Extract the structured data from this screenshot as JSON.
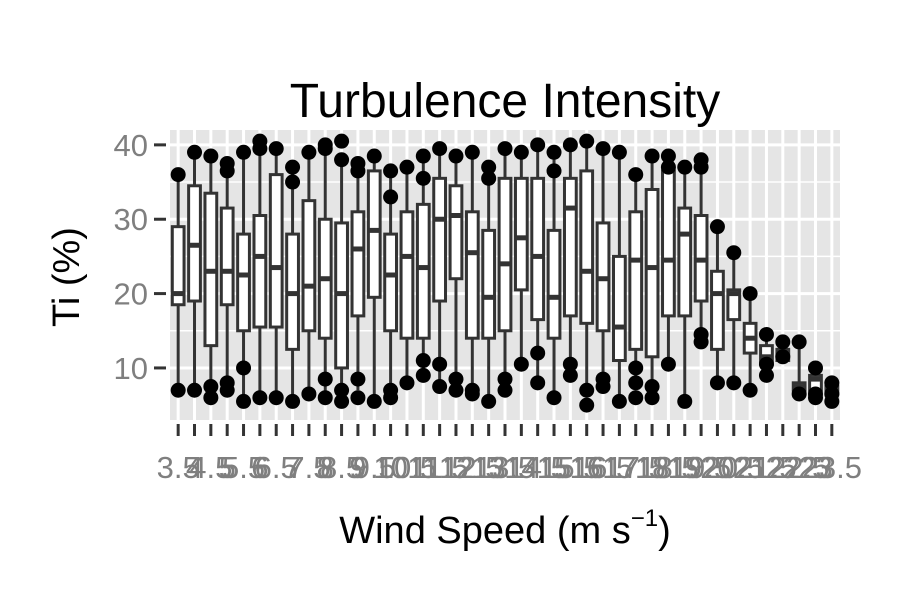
{
  "chart_data": {
    "type": "boxplot",
    "title": "Turbulence Intensity",
    "xlabel": "Wind Speed (m s",
    "xlabel_superscript": "−1",
    "xlabel_suffix": ")",
    "ylabel": "Ti (%)",
    "ylim": [
      3,
      42
    ],
    "yticks": [
      10,
      20,
      30,
      40
    ],
    "ytick_labels": [
      "10",
      "20",
      "30",
      "40"
    ],
    "grid": true,
    "legend": "none",
    "categories": [
      "3.5",
      "4",
      "4.5",
      "5",
      "5.5",
      "6",
      "6.5",
      "7",
      "7.5",
      "8",
      "8.5",
      "9",
      "9.5",
      "10",
      "10.5",
      "11",
      "11.5",
      "12",
      "12.5",
      "13",
      "13.5",
      "14",
      "14.5",
      "15",
      "15.5",
      "16",
      "16.5",
      "17",
      "17.5",
      "18",
      "18.5",
      "19",
      "19.5",
      "20",
      "20.5",
      "21",
      "21.5",
      "22",
      "22.5",
      "23",
      "23.5"
    ],
    "boxes": [
      {
        "whislo": 7,
        "q1": 18.5,
        "med": 20,
        "q3": 29,
        "whishi": 36,
        "fliers": [
          7,
          36
        ]
      },
      {
        "whislo": 7,
        "q1": 19,
        "med": 26.5,
        "q3": 34.5,
        "whishi": 39,
        "fliers": [
          7,
          39
        ]
      },
      {
        "whislo": 6,
        "q1": 13,
        "med": 23,
        "q3": 33.5,
        "whishi": 38,
        "fliers": [
          6,
          7.5,
          38.5
        ]
      },
      {
        "whislo": 7,
        "q1": 18.5,
        "med": 23,
        "q3": 31.5,
        "whishi": 37,
        "fliers": [
          7,
          8,
          36.5,
          37.5
        ]
      },
      {
        "whislo": 6,
        "q1": 15,
        "med": 22.5,
        "q3": 28,
        "whishi": 39,
        "fliers": [
          5.5,
          10,
          39
        ]
      },
      {
        "whislo": 6,
        "q1": 15.5,
        "med": 25,
        "q3": 30.5,
        "whishi": 39.5,
        "fliers": [
          6,
          39.5,
          40.5
        ]
      },
      {
        "whislo": 6,
        "q1": 15.5,
        "med": 23.5,
        "q3": 36,
        "whishi": 39.5,
        "fliers": [
          6,
          39.5
        ]
      },
      {
        "whislo": 5.5,
        "q1": 12.5,
        "med": 20,
        "q3": 28,
        "whishi": 37,
        "fliers": [
          5.5,
          35,
          37
        ]
      },
      {
        "whislo": 6.5,
        "q1": 15,
        "med": 21,
        "q3": 32.5,
        "whishi": 39,
        "fliers": [
          6.5,
          39
        ]
      },
      {
        "whislo": 6.5,
        "q1": 14,
        "med": 22,
        "q3": 30,
        "whishi": 40,
        "fliers": [
          6,
          8.5,
          39.5,
          40
        ]
      },
      {
        "whislo": 7,
        "q1": 10,
        "med": 20,
        "q3": 29.5,
        "whishi": 38.5,
        "fliers": [
          5.5,
          7,
          38,
          40.5
        ]
      },
      {
        "whislo": 7,
        "q1": 17,
        "med": 26,
        "q3": 31,
        "whishi": 37,
        "fliers": [
          6,
          8.5,
          36.5,
          37.5
        ]
      },
      {
        "whislo": 5.5,
        "q1": 19.5,
        "med": 28.5,
        "q3": 36.5,
        "whishi": 38.5,
        "fliers": [
          5.5,
          38.5
        ]
      },
      {
        "whislo": 7,
        "q1": 15,
        "med": 22.5,
        "q3": 28,
        "whishi": 36.5,
        "fliers": [
          6,
          7,
          33,
          36.5
        ]
      },
      {
        "whislo": 8,
        "q1": 14,
        "med": 25,
        "q3": 31,
        "whishi": 37,
        "fliers": [
          8,
          37
        ]
      },
      {
        "whislo": 9,
        "q1": 14,
        "med": 23.5,
        "q3": 32,
        "whishi": 38.5,
        "fliers": [
          9,
          11,
          35.5,
          38.5
        ]
      },
      {
        "whislo": 7.5,
        "q1": 19,
        "med": 30,
        "q3": 35.5,
        "whishi": 39.5,
        "fliers": [
          7.5,
          10.5,
          39.5
        ]
      },
      {
        "whislo": 8,
        "q1": 22,
        "med": 30.5,
        "q3": 34.5,
        "whishi": 38.5,
        "fliers": [
          7,
          8.5,
          38.5
        ]
      },
      {
        "whislo": 7,
        "q1": 14,
        "med": 25.5,
        "q3": 31,
        "whishi": 39,
        "fliers": [
          6.5,
          7,
          39
        ]
      },
      {
        "whislo": 6,
        "q1": 14,
        "med": 19.5,
        "q3": 28.5,
        "whishi": 36.5,
        "fliers": [
          5.5,
          35.5,
          37
        ]
      },
      {
        "whislo": 8,
        "q1": 15,
        "med": 24,
        "q3": 35.5,
        "whishi": 39.5,
        "fliers": [
          7,
          8.5,
          39.5
        ]
      },
      {
        "whislo": 10.5,
        "q1": 20.5,
        "med": 27.5,
        "q3": 35.5,
        "whishi": 39,
        "fliers": [
          10.5,
          39
        ]
      },
      {
        "whislo": 8,
        "q1": 16.5,
        "med": 25,
        "q3": 35.5,
        "whishi": 40,
        "fliers": [
          8,
          12,
          40
        ]
      },
      {
        "whislo": 6,
        "q1": 14,
        "med": 19.5,
        "q3": 28.5,
        "whishi": 39,
        "fliers": [
          6,
          36.5,
          39
        ]
      },
      {
        "whislo": 9,
        "q1": 17,
        "med": 31.5,
        "q3": 35.5,
        "whishi": 40,
        "fliers": [
          9,
          10.5,
          40
        ]
      },
      {
        "whislo": 7,
        "q1": 16,
        "med": 23,
        "q3": 36.5,
        "whishi": 40.5,
        "fliers": [
          5,
          7,
          40.5
        ]
      },
      {
        "whislo": 7.5,
        "q1": 15,
        "med": 22,
        "q3": 29.5,
        "whishi": 39.5,
        "fliers": [
          7.5,
          8.5,
          39.5
        ]
      },
      {
        "whislo": 6,
        "q1": 11,
        "med": 15.5,
        "q3": 25,
        "whishi": 39,
        "fliers": [
          5.5,
          39
        ]
      },
      {
        "whislo": 8,
        "q1": 12.5,
        "med": 24.5,
        "q3": 31,
        "whishi": 36,
        "fliers": [
          6,
          8,
          10,
          36
        ]
      },
      {
        "whislo": 7.5,
        "q1": 11.5,
        "med": 23.5,
        "q3": 34,
        "whishi": 38.5,
        "fliers": [
          6,
          7.5,
          38.5
        ]
      },
      {
        "whislo": 10.5,
        "q1": 17,
        "med": 24.5,
        "q3": 36.5,
        "whishi": 38.5,
        "fliers": [
          10.5,
          37,
          38.5
        ]
      },
      {
        "whislo": 5.5,
        "q1": 17,
        "med": 28,
        "q3": 31.5,
        "whishi": 37,
        "fliers": [
          5.5,
          37
        ]
      },
      {
        "whislo": 14,
        "q1": 19,
        "med": 24.5,
        "q3": 30.5,
        "whishi": 38,
        "fliers": [
          13.5,
          14.5,
          37,
          38
        ]
      },
      {
        "whislo": 8,
        "q1": 12.5,
        "med": 20,
        "q3": 23,
        "whishi": 29,
        "fliers": [
          8,
          29
        ]
      },
      {
        "whislo": 8,
        "q1": 16.5,
        "med": 20,
        "q3": 20.5,
        "whishi": 25.5,
        "fliers": [
          8,
          25.5
        ]
      },
      {
        "whislo": 7,
        "q1": 12,
        "med": 14,
        "q3": 16,
        "whishi": 20,
        "fliers": [
          7,
          20
        ]
      },
      {
        "whislo": 9,
        "q1": 10.5,
        "med": 11.5,
        "q3": 13,
        "whishi": 14.5,
        "fliers": [
          9,
          10.5,
          14.5
        ]
      },
      {
        "whislo": 11,
        "q1": 11,
        "med": 11.5,
        "q3": 12.5,
        "whishi": 13.5,
        "fliers": [
          11.5,
          13.5
        ]
      },
      {
        "whislo": 6.5,
        "q1": 7,
        "med": 7.5,
        "q3": 8,
        "whishi": 13.5,
        "fliers": [
          6.5,
          13.5
        ]
      },
      {
        "whislo": 6,
        "q1": 7,
        "med": 8.5,
        "q3": 9,
        "whishi": 10,
        "fliers": [
          6,
          6.5,
          10
        ]
      },
      {
        "whislo": 5.5,
        "q1": 6.5,
        "med": 7,
        "q3": 7.5,
        "whishi": 8,
        "fliers": [
          5.5,
          6.5,
          8
        ]
      }
    ]
  },
  "colors": {
    "panel_bg": "#e5e5e5",
    "grid": "#ffffff",
    "box_fill": "#ffffff",
    "box_line": "#333333",
    "point": "#000000",
    "tick": "#7f7f7f"
  }
}
